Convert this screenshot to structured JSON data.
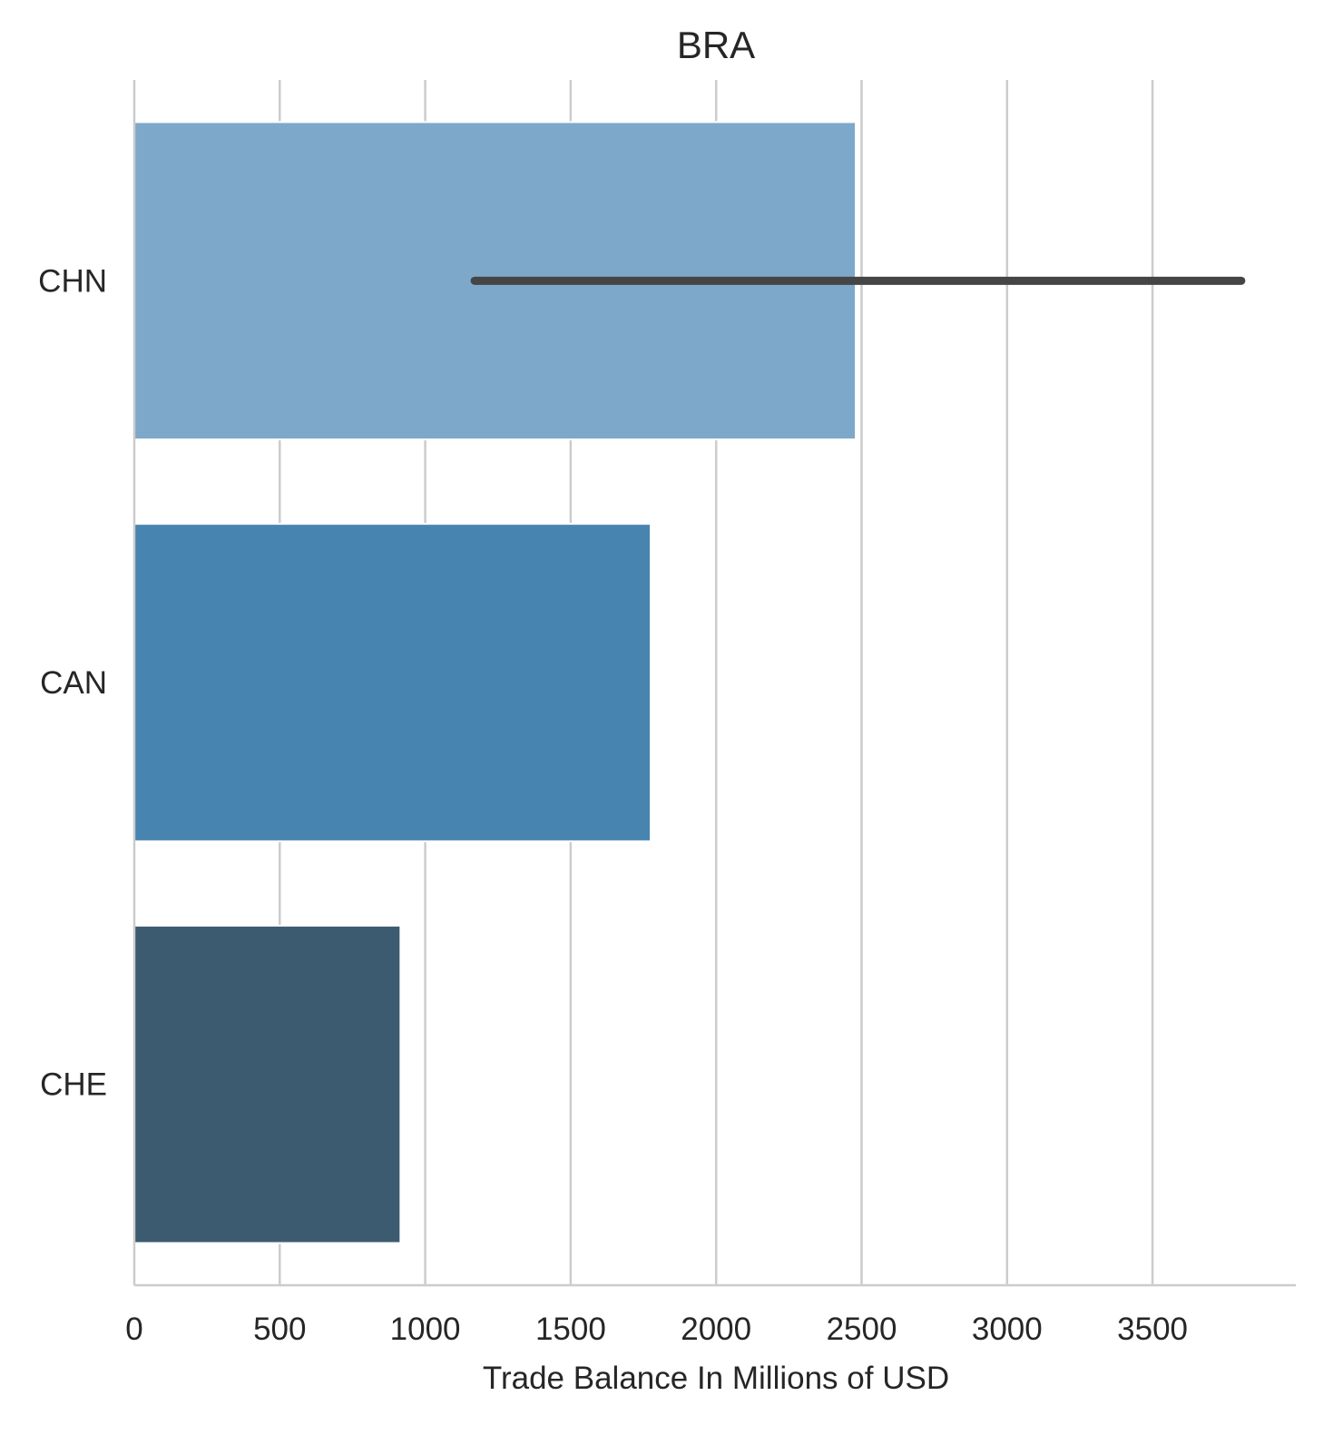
{
  "chart_data": {
    "type": "bar",
    "orientation": "horizontal",
    "title": "BRA",
    "xlabel": "Trade Balance In Millions of USD",
    "ylabel": "",
    "xlim": [
      0,
      4000
    ],
    "xticks": [
      0,
      500,
      1000,
      1500,
      2000,
      2500,
      3000,
      3500
    ],
    "xtick_labels": [
      "0",
      "500",
      "1000",
      "1500",
      "2000",
      "2500",
      "3000",
      "3500"
    ],
    "categories": [
      "CHN",
      "CAN",
      "CHE"
    ],
    "values": [
      2480,
      1775,
      915
    ],
    "error_bars": [
      [
        1170,
        3805
      ],
      null,
      null
    ],
    "colors": [
      "#7ea8c9",
      "#4884b0",
      "#3c5b70"
    ],
    "error_color": "#454545",
    "grid": "vertical",
    "legend": "none"
  }
}
